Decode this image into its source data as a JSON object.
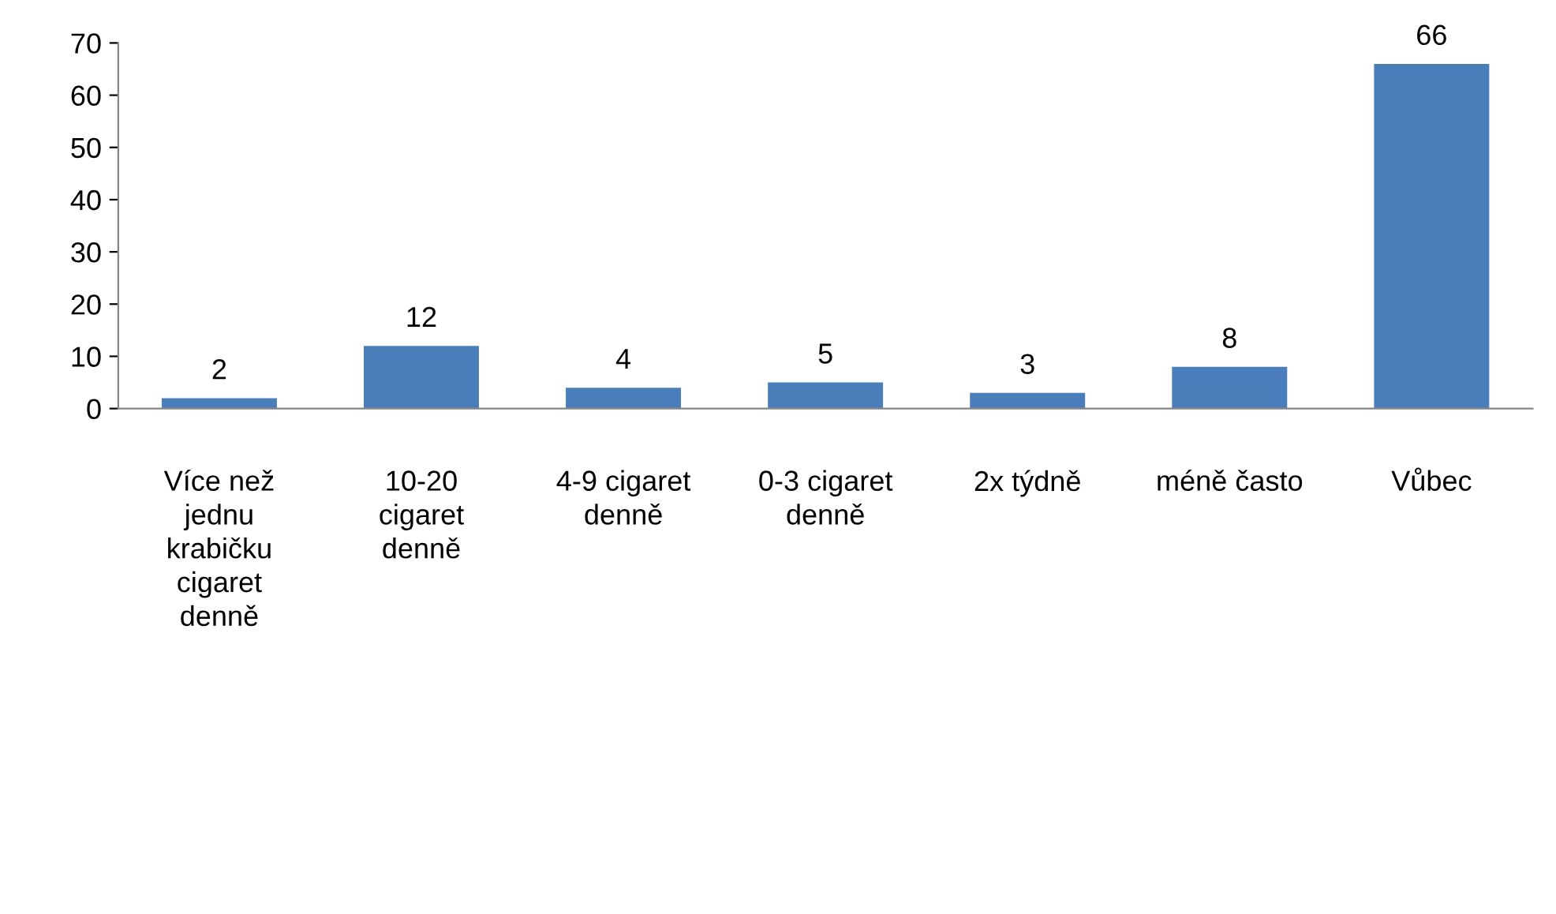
{
  "chart_data": {
    "type": "bar",
    "categories": [
      "Více než jednu krabičku cigaret denně",
      "10-20 cigaret denně",
      "4-9 cigaret denně",
      "0-3 cigaret denně",
      "2x týdně",
      "méně často",
      "Vůbec"
    ],
    "values": [
      2,
      12,
      4,
      5,
      3,
      8,
      66
    ],
    "color": "#4a7ebb",
    "ylim": [
      0,
      70
    ],
    "yticks": [
      0,
      10,
      20,
      30,
      40,
      50,
      60,
      70
    ],
    "grid": false,
    "data_labels": true
  }
}
